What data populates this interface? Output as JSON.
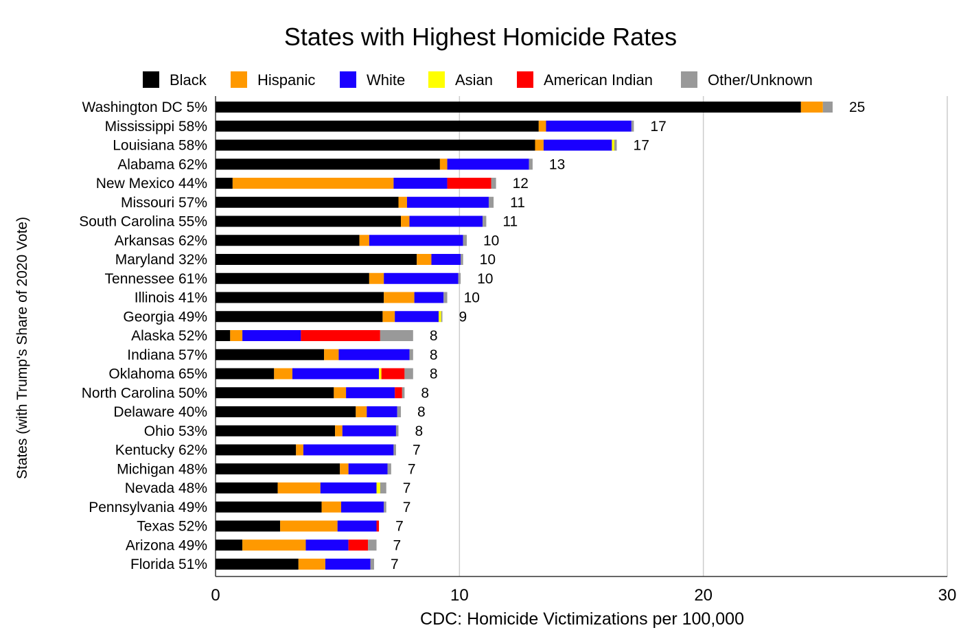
{
  "chart_data": {
    "type": "bar",
    "orientation": "horizontal",
    "stacked": true,
    "title": "States with Highest Homicide Rates",
    "xlabel": "CDC: Homicide Victimizations per 100,000",
    "ylabel": "States (with Trump's Share of 2020 Vote)",
    "xlim": [
      0,
      30
    ],
    "xticks": [
      0,
      10,
      20,
      30
    ],
    "grid": "vertical",
    "legend_position": "top",
    "categories": [
      "Washington DC 5%",
      "Mississippi 58%",
      "Louisiana 58%",
      "Alabama 62%",
      "New Mexico 44%",
      "Missouri 57%",
      "South Carolina 55%",
      "Arkansas 62%",
      "Maryland 32%",
      "Tennessee 61%",
      "Illinois 41%",
      "Georgia 49%",
      "Alaska 52%",
      "Indiana 57%",
      "Oklahoma 65%",
      "North Carolina 50%",
      "Delaware 40%",
      "Ohio 53%",
      "Kentucky 62%",
      "Michigan 48%",
      "Nevada 48%",
      "Pennsylvania 49%",
      "Texas 52%",
      "Arizona 49%",
      "Florida 51%"
    ],
    "totals": [
      "25",
      "17",
      "17",
      "13",
      "12",
      "11",
      "11",
      "10",
      "10",
      "10",
      "10",
      "9",
      "8",
      "8",
      "8",
      "8",
      "8",
      "8",
      "7",
      "7",
      "7",
      "7",
      "7",
      "7",
      "7"
    ],
    "series": [
      {
        "name": "Black",
        "color": "#000000",
        "values": [
          24.0,
          13.25,
          13.1,
          9.2,
          0.7,
          7.5,
          7.6,
          5.9,
          8.25,
          6.3,
          6.9,
          6.85,
          0.6,
          4.45,
          2.4,
          4.85,
          5.75,
          4.9,
          3.3,
          5.1,
          2.55,
          4.35,
          2.65,
          1.1,
          3.4
        ]
      },
      {
        "name": "Hispanic",
        "color": "#ff9900",
        "values": [
          0.9,
          0.3,
          0.35,
          0.3,
          6.6,
          0.35,
          0.35,
          0.4,
          0.6,
          0.6,
          1.25,
          0.5,
          0.5,
          0.6,
          0.75,
          0.5,
          0.45,
          0.3,
          0.3,
          0.35,
          1.75,
          0.8,
          2.35,
          2.6,
          1.1
        ]
      },
      {
        "name": "White",
        "color": "#1a00ff",
        "values": [
          0,
          3.5,
          2.8,
          3.35,
          2.2,
          3.35,
          3.0,
          3.85,
          1.2,
          3.05,
          1.2,
          1.8,
          2.4,
          2.9,
          3.55,
          2.0,
          1.25,
          2.2,
          3.7,
          1.6,
          2.3,
          1.75,
          1.6,
          1.75,
          1.85
        ]
      },
      {
        "name": "Asian",
        "color": "#ffff00",
        "values": [
          0,
          0,
          0.1,
          0,
          0,
          0,
          0,
          0,
          0,
          0,
          0,
          0.1,
          0,
          0,
          0.1,
          0,
          0,
          0,
          0,
          0,
          0.15,
          0,
          0,
          0,
          0
        ]
      },
      {
        "name": "American Indian",
        "color": "#ff0000",
        "values": [
          0,
          0,
          0,
          0,
          1.8,
          0,
          0,
          0,
          0,
          0,
          0,
          0,
          3.25,
          0,
          0.95,
          0.3,
          0,
          0,
          0,
          0,
          0,
          0,
          0.1,
          0.8,
          0
        ]
      },
      {
        "name": "Other/Unknown",
        "color": "#999999",
        "values": [
          0.4,
          0.1,
          0.1,
          0.15,
          0.2,
          0.2,
          0.15,
          0.15,
          0.1,
          0.1,
          0.15,
          0.05,
          1.35,
          0.15,
          0.35,
          0.1,
          0.15,
          0.1,
          0.1,
          0.15,
          0.25,
          0.1,
          0,
          0.35,
          0.15
        ]
      }
    ]
  }
}
